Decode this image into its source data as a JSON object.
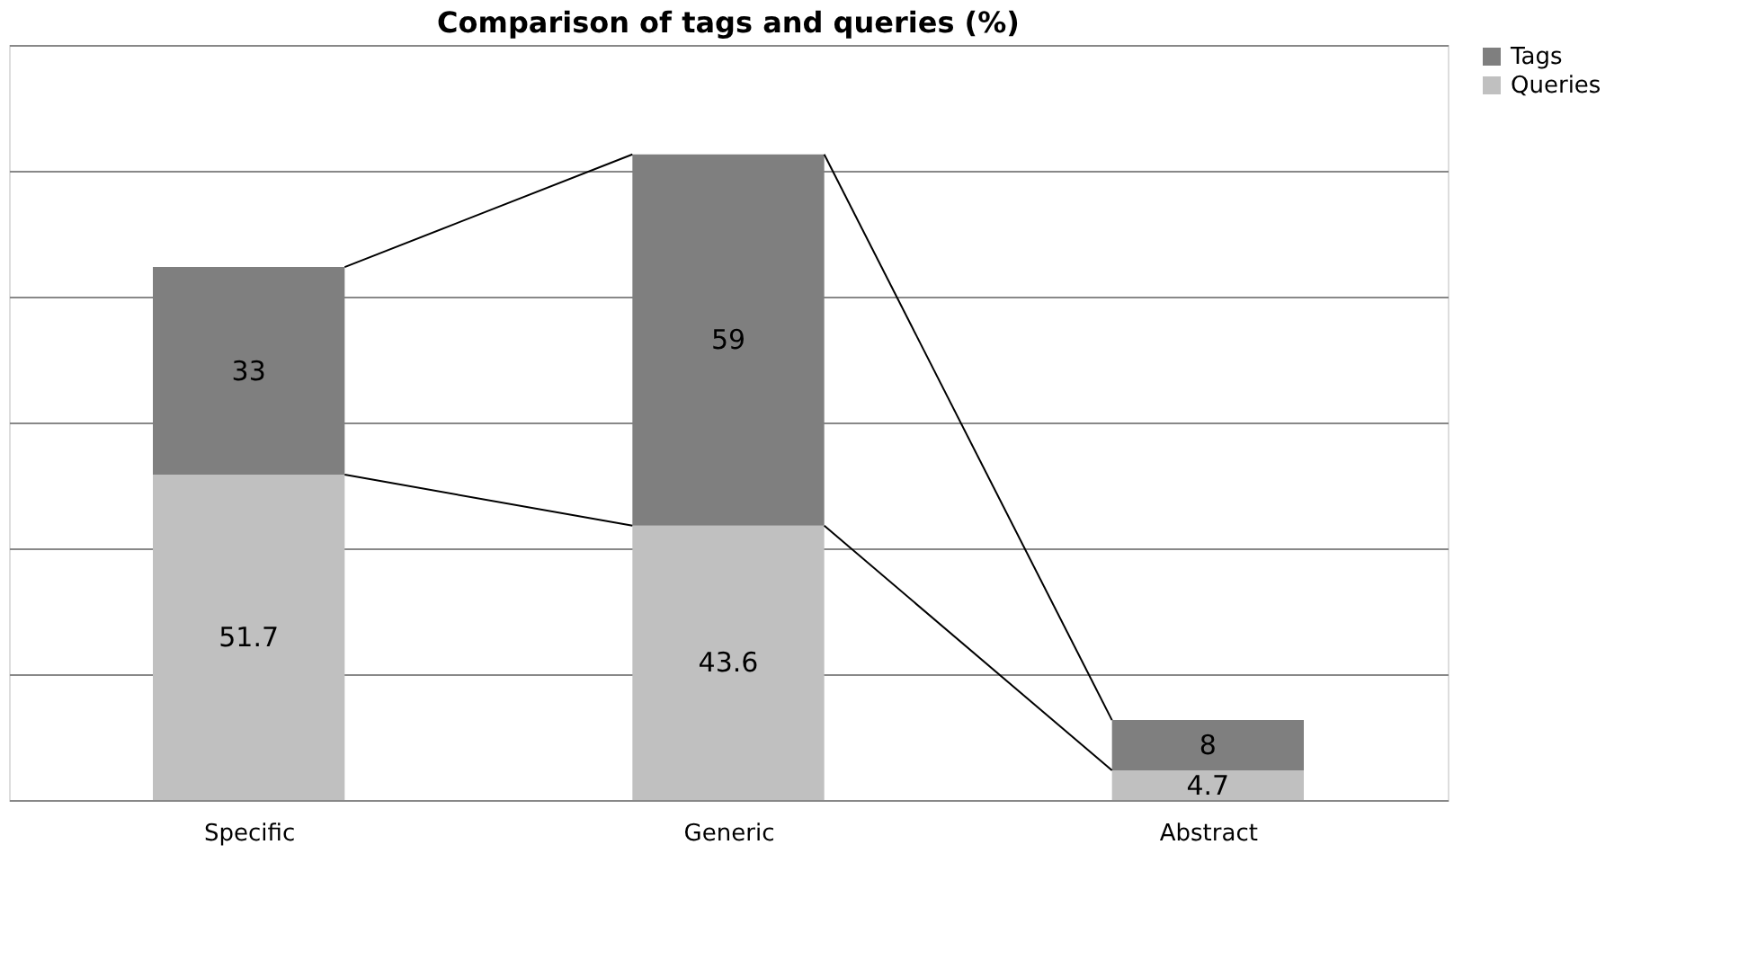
{
  "chart_data": {
    "type": "bar",
    "title": "Comparison of tags and queries (%)",
    "categories": [
      "Specific",
      "Generic",
      "Abstract"
    ],
    "stacked": true,
    "data_labels": true,
    "legend": "right",
    "grid": "y",
    "tick_labels": "x",
    "ylim": [
      0,
      120
    ],
    "yticks": [
      {
        "value": 0,
        "label": null
      },
      {
        "value": 20,
        "label": null
      },
      {
        "value": 40,
        "label": null
      },
      {
        "value": 60,
        "label": null
      },
      {
        "value": 80,
        "label": null
      },
      {
        "value": 100,
        "label": null
      },
      {
        "value": 120,
        "label": null
      }
    ],
    "series": [
      {
        "name": "Queries",
        "color": "#c0c0c0",
        "values": [
          51.7,
          43.6,
          4.7
        ]
      },
      {
        "name": "Tags",
        "color": "#7f7f7f",
        "values": [
          33,
          59,
          8
        ]
      }
    ]
  }
}
